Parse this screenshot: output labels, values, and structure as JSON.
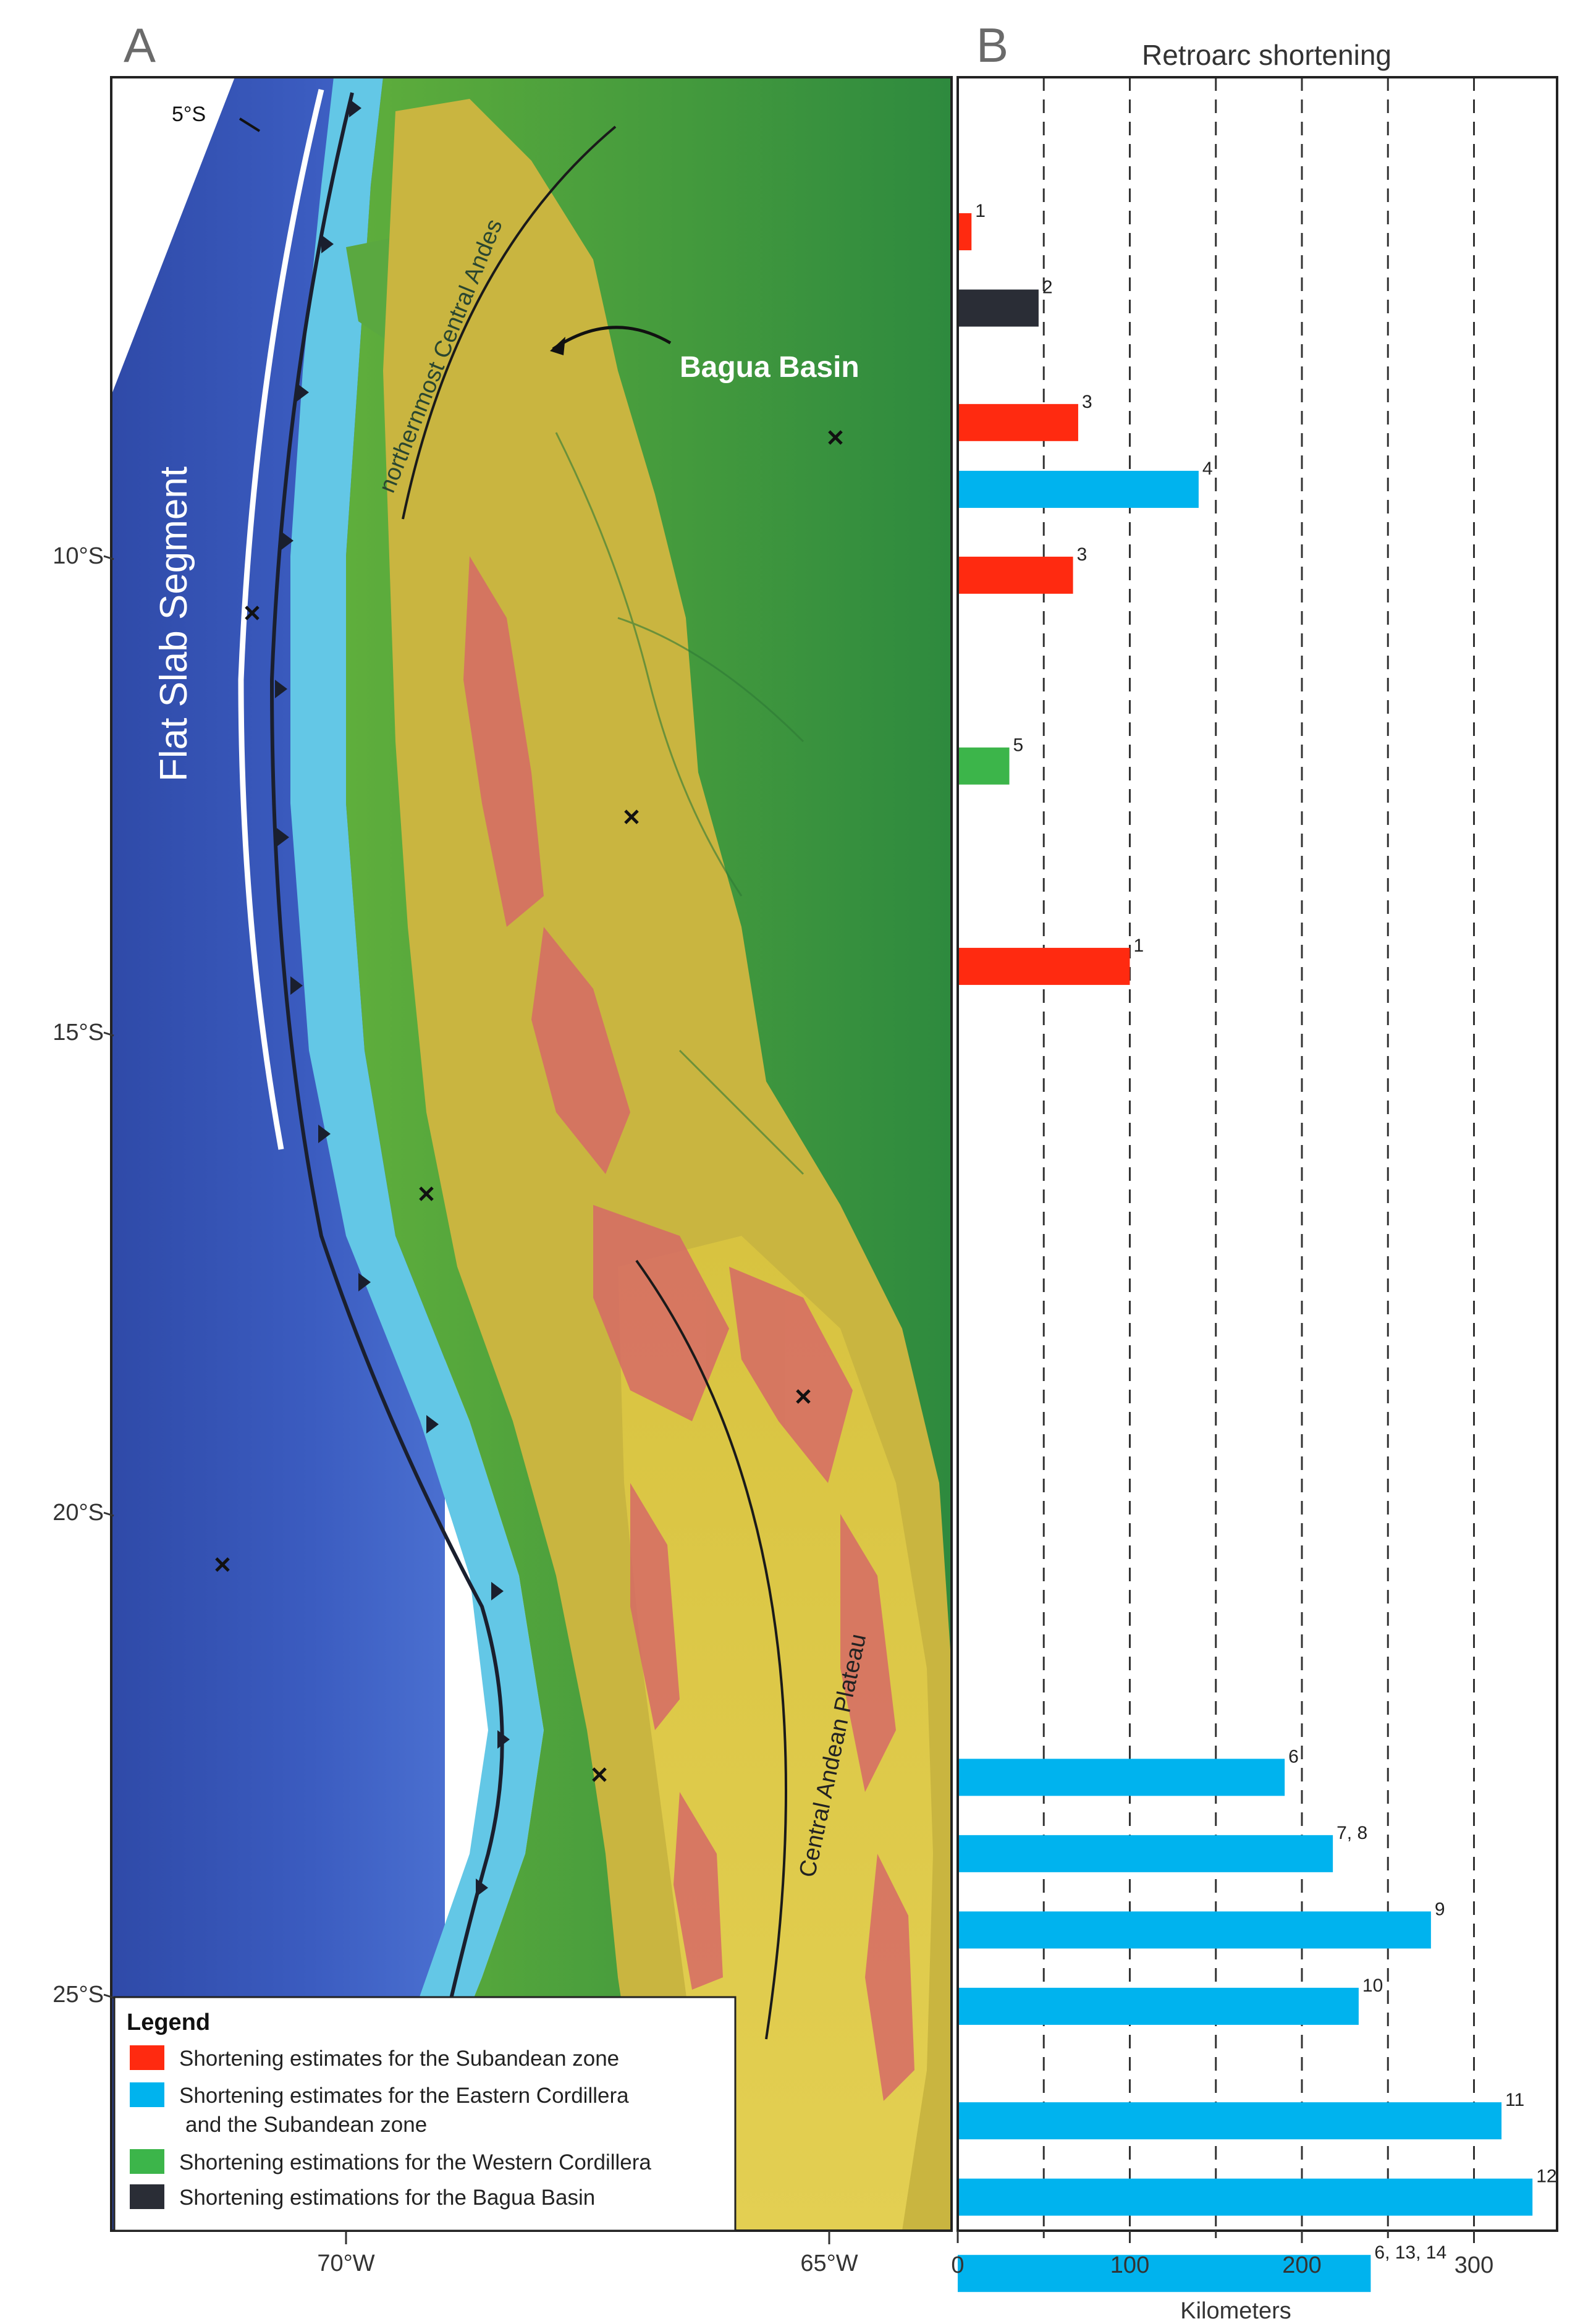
{
  "panel_a_letter": "A",
  "panel_b_letter": "B",
  "map": {
    "labels": {
      "five_s": "5°S",
      "flat_slab": "Flat Slab Segment",
      "northernmost": "northernmost Central Andes",
      "bagua": "Bagua Basin",
      "central_plateau": "Central Andean Plateau"
    },
    "lat_labels": [
      "10°S",
      "15°S",
      "20°S",
      "25°S"
    ],
    "lon_labels": [
      "70°W",
      "65°W"
    ]
  },
  "legend": {
    "title": "Legend",
    "items": [
      {
        "text": "Shortening estimates for the Subandean zone",
        "color": "#ff2a10"
      },
      {
        "text": "Shortening estimates for the Eastern Cordillera",
        "text2": "and the Subandean zone",
        "color": "#00b3ee"
      },
      {
        "text": "Shortening estimations for the Western Cordillera",
        "color": "#3cb54a"
      },
      {
        "text": "Shortening estimations for the Bagua Basin",
        "color": "#2a2d36"
      }
    ]
  },
  "chart_data": {
    "type": "bar",
    "orientation": "horizontal",
    "title": "Retroarc shortening",
    "xlabel": "Kilometers",
    "xlim": [
      0,
      350
    ],
    "xticks": [
      0,
      100,
      200,
      300
    ],
    "grid_lines": [
      50,
      100,
      150,
      200,
      250,
      300
    ],
    "grid": true,
    "colors": {
      "subandean": "#ff2a10",
      "eastern_cordillera_subandean": "#00b3ee",
      "western_cordillera": "#3cb54a",
      "bagua_basin": "#2a2d36"
    },
    "bars": [
      {
        "label": "1",
        "value": 8,
        "lat": 6.6,
        "category": "subandean"
      },
      {
        "label": "2",
        "value": 47,
        "lat": 7.4,
        "category": "bagua_basin"
      },
      {
        "label": "3",
        "value": 70,
        "lat": 8.6,
        "category": "subandean"
      },
      {
        "label": "4",
        "value": 140,
        "lat": 9.3,
        "category": "eastern_cordillera_subandean"
      },
      {
        "label": "3",
        "value": 67,
        "lat": 10.2,
        "category": "subandean"
      },
      {
        "label": "5",
        "value": 30,
        "lat": 12.2,
        "category": "western_cordillera"
      },
      {
        "label": "1",
        "value": 100,
        "lat": 14.3,
        "category": "subandean"
      },
      {
        "label": "6",
        "value": 190,
        "lat": 22.8,
        "category": "eastern_cordillera_subandean"
      },
      {
        "label": "7, 8",
        "value": 218,
        "lat": 23.6,
        "category": "eastern_cordillera_subandean"
      },
      {
        "label": "9",
        "value": 275,
        "lat": 24.4,
        "category": "eastern_cordillera_subandean"
      },
      {
        "label": "10",
        "value": 233,
        "lat": 25.2,
        "category": "eastern_cordillera_subandean"
      },
      {
        "label": "11",
        "value": 316,
        "lat": 26.4,
        "category": "eastern_cordillera_subandean"
      },
      {
        "label": "12",
        "value": 334,
        "lat": 27.2,
        "category": "eastern_cordillera_subandean"
      },
      {
        "label": "6, 13, 14",
        "value": 240,
        "lat": 28.0,
        "category": "eastern_cordillera_subandean"
      }
    ]
  }
}
